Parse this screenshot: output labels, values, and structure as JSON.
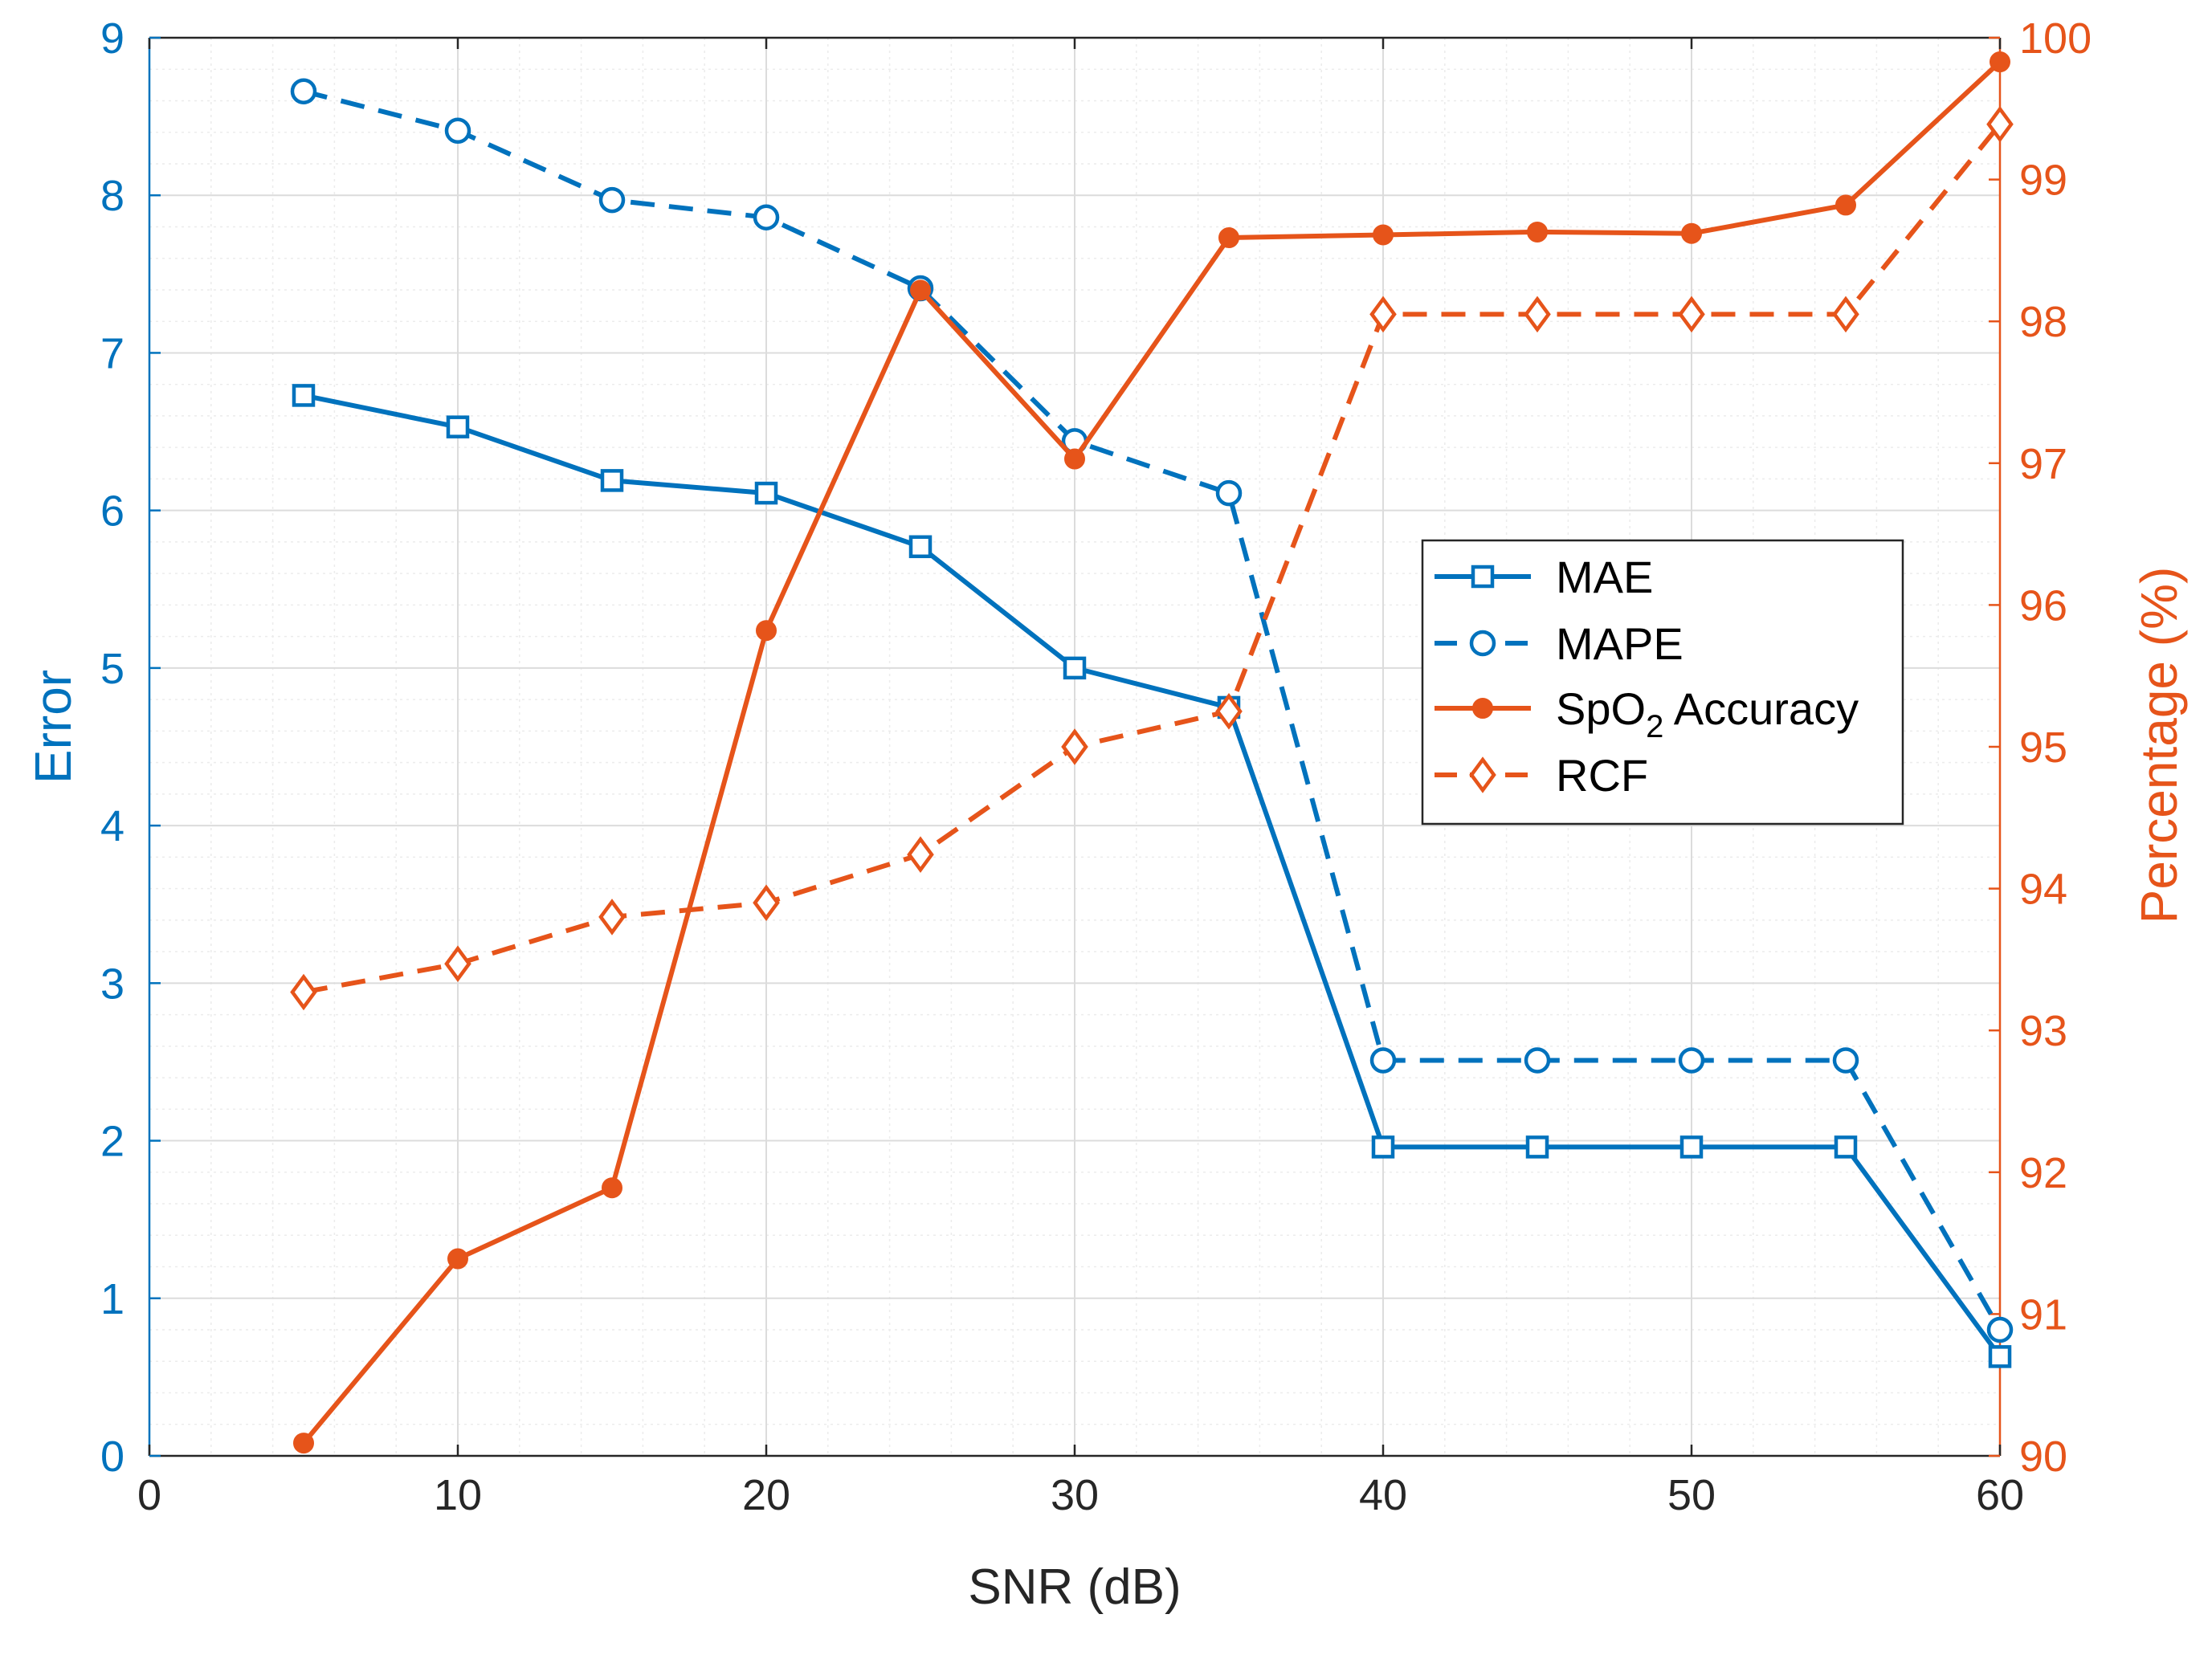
{
  "chart_data": {
    "type": "line",
    "title": "",
    "xlabel": "SNR (dB)",
    "ylabel_left": "Error",
    "ylabel_right": "Percentage (%)",
    "xlim": [
      0,
      60
    ],
    "ylim_left": [
      0,
      9
    ],
    "ylim_right": [
      90,
      100
    ],
    "x_ticks": [
      "0",
      "10",
      "20",
      "30",
      "40",
      "50",
      "60"
    ],
    "y_left_ticks": [
      "0",
      "1",
      "2",
      "3",
      "4",
      "5",
      "6",
      "7",
      "8",
      "9"
    ],
    "y_right_ticks": [
      "90",
      "91",
      "92",
      "93",
      "94",
      "95",
      "96",
      "97",
      "98",
      "99",
      "100"
    ],
    "grid": true,
    "minor_grid": true,
    "legend_position": "center-right",
    "colors": {
      "left_axis": "#0072BD",
      "right_axis": "#E6541A"
    },
    "x": [
      5,
      10,
      15,
      20,
      25,
      30,
      35,
      40,
      45,
      50,
      55,
      60
    ],
    "series": [
      {
        "name": "MAE",
        "axis": "left",
        "style": "solid",
        "marker": "square",
        "color": "#0072BD",
        "values": [
          6.73,
          6.53,
          6.19,
          6.11,
          5.77,
          5.0,
          4.75,
          1.96,
          1.96,
          1.96,
          1.96,
          0.63
        ]
      },
      {
        "name": "MAPE",
        "axis": "left",
        "style": "dashed",
        "marker": "circle",
        "color": "#0072BD",
        "values": [
          8.66,
          8.41,
          7.97,
          7.86,
          7.41,
          6.44,
          6.11,
          2.51,
          2.51,
          2.51,
          2.51,
          0.8
        ]
      },
      {
        "name": "SpO",
        "sub": "2",
        "suffix": " Accuracy",
        "axis": "right",
        "style": "solid",
        "marker": "filled-circle",
        "color": "#E6541A",
        "values": [
          90.09,
          91.39,
          91.89,
          95.82,
          98.22,
          97.03,
          98.59,
          98.61,
          98.63,
          98.62,
          98.82,
          99.83
        ]
      },
      {
        "name": "RCF",
        "axis": "right",
        "style": "dashed",
        "marker": "diamond",
        "color": "#E6541A",
        "values": [
          93.27,
          93.47,
          93.8,
          93.9,
          94.24,
          95.0,
          95.25,
          98.05,
          98.05,
          98.05,
          98.05,
          99.39
        ]
      }
    ]
  }
}
